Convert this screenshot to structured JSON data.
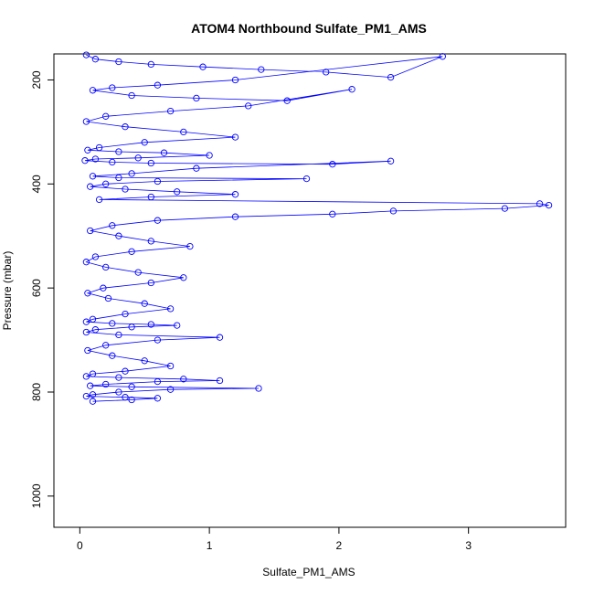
{
  "chart_data": {
    "type": "line",
    "title": "ATOM4 Northbound Sulfate_PM1_AMS",
    "xlabel": "Sulfate_PM1_AMS",
    "ylabel": "Pressure (mbar)",
    "xlim": [
      -0.2,
      3.75
    ],
    "ylim": [
      1060,
      150
    ],
    "y_reversed": true,
    "xticks": [
      0,
      1,
      2,
      3
    ],
    "yticks": [
      200,
      400,
      600,
      800,
      1000
    ],
    "grid": false,
    "legend": "none",
    "series_color": "#0000ff",
    "marker": "open-circle",
    "series": [
      {
        "x": [
          0.05,
          0.12,
          0.3,
          0.55,
          0.95,
          1.4,
          1.9,
          2.4,
          2.8,
          1.2,
          0.6,
          0.25,
          0.1,
          0.4,
          0.9,
          1.6,
          2.1,
          1.3,
          0.7,
          0.2,
          0.05,
          0.35,
          0.8,
          1.2,
          0.5,
          0.15,
          0.06,
          0.3,
          0.65,
          1.0,
          0.45,
          0.12,
          0.04,
          0.25,
          0.55,
          1.95,
          2.4,
          0.9,
          0.4,
          0.1,
          0.3,
          1.75,
          0.6,
          0.2,
          0.08,
          0.35,
          0.75,
          1.2,
          0.55,
          0.15,
          3.55,
          3.62,
          3.28,
          2.42,
          1.95,
          1.2,
          0.6,
          0.25,
          0.08,
          0.3,
          0.55,
          0.85,
          0.4,
          0.12,
          0.05,
          0.2,
          0.45,
          0.8,
          0.55,
          0.18,
          0.06,
          0.22,
          0.5,
          0.7,
          0.35,
          0.1,
          0.05,
          0.25,
          0.55,
          0.75,
          0.4,
          0.12,
          0.05,
          0.3,
          1.08,
          0.6,
          0.2,
          0.06,
          0.25,
          0.5,
          0.7,
          0.35,
          0.1,
          0.05,
          0.3,
          0.8,
          1.08,
          0.6,
          0.2,
          0.08,
          0.4,
          1.38,
          0.7,
          0.3,
          0.1,
          0.05,
          0.35,
          0.6,
          0.4,
          0.1
        ],
        "y": [
          152,
          160,
          165,
          170,
          175,
          180,
          185,
          195,
          155,
          200,
          210,
          215,
          220,
          230,
          235,
          240,
          218,
          250,
          260,
          270,
          280,
          290,
          300,
          310,
          320,
          330,
          335,
          338,
          340,
          345,
          350,
          352,
          355,
          358,
          360,
          362,
          356,
          370,
          380,
          385,
          388,
          390,
          395,
          400,
          405,
          410,
          415,
          420,
          425,
          430,
          438,
          441,
          447,
          452,
          458,
          463,
          470,
          480,
          490,
          500,
          510,
          520,
          530,
          540,
          550,
          560,
          570,
          580,
          590,
          600,
          610,
          620,
          630,
          640,
          650,
          660,
          665,
          668,
          670,
          672,
          675,
          680,
          685,
          690,
          695,
          700,
          710,
          720,
          730,
          740,
          750,
          760,
          765,
          770,
          772,
          775,
          778,
          780,
          785,
          788,
          790,
          793,
          795,
          800,
          805,
          808,
          810,
          812,
          815,
          818
        ]
      }
    ]
  }
}
